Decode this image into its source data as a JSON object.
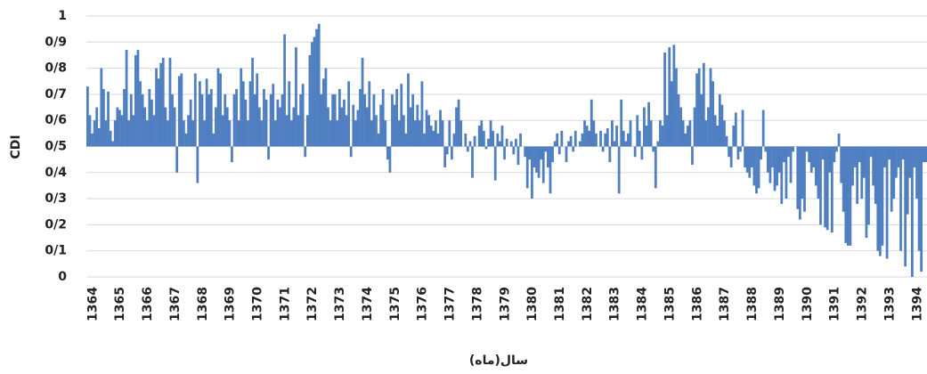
{
  "chart_data": {
    "type": "bar",
    "ylabel": "CDI",
    "xlabel": "سال(ماه)",
    "color": "#4f7fc0",
    "base": 0.5,
    "ylim": [
      0,
      1
    ],
    "yticks": [
      0,
      {
        "value": 0.1,
        "label": "0/1"
      },
      {
        "value": 0.2,
        "label": "0/2"
      },
      {
        "value": 0.3,
        "label": "0/3"
      },
      {
        "value": 0.4,
        "label": "0/4"
      },
      {
        "value": 0.5,
        "label": "0/5"
      },
      {
        "value": 0.6,
        "label": "0/6"
      },
      {
        "value": 0.7,
        "label": "0/7"
      },
      {
        "value": 0.8,
        "label": "0/8"
      },
      {
        "value": 0.9,
        "label": "0/9"
      },
      1
    ],
    "grid": true,
    "categories": [
      "1364",
      null,
      null,
      null,
      null,
      null,
      null,
      null,
      null,
      null,
      null,
      null,
      "1365",
      null,
      null,
      null,
      null,
      null,
      null,
      null,
      null,
      null,
      null,
      null,
      "1366",
      null,
      null,
      null,
      null,
      null,
      null,
      null,
      null,
      null,
      null,
      null,
      "1367",
      null,
      null,
      null,
      null,
      null,
      null,
      null,
      null,
      null,
      null,
      null,
      "1368",
      null,
      null,
      null,
      null,
      null,
      null,
      null,
      null,
      null,
      null,
      null,
      "1369",
      null,
      null,
      null,
      null,
      null,
      null,
      null,
      null,
      null,
      null,
      null,
      "1370",
      null,
      null,
      null,
      null,
      null,
      null,
      null,
      null,
      null,
      null,
      null,
      "1371",
      null,
      null,
      null,
      null,
      null,
      null,
      null,
      null,
      null,
      null,
      null,
      "1372",
      null,
      null,
      null,
      null,
      null,
      null,
      null,
      null,
      null,
      null,
      null,
      "1373",
      null,
      null,
      null,
      null,
      null,
      null,
      null,
      null,
      null,
      null,
      null,
      "1374",
      null,
      null,
      null,
      null,
      null,
      null,
      null,
      null,
      null,
      null,
      null,
      "1375",
      null,
      null,
      null,
      null,
      null,
      null,
      null,
      null,
      null,
      null,
      null,
      "1376",
      null,
      null,
      null,
      null,
      null,
      null,
      null,
      null,
      null,
      null,
      null,
      "1377",
      null,
      null,
      null,
      null,
      null,
      null,
      null,
      null,
      null,
      null,
      null,
      "1378",
      null,
      null,
      null,
      null,
      null,
      null,
      null,
      null,
      null,
      null,
      null,
      "1379",
      null,
      null,
      null,
      null,
      null,
      null,
      null,
      null,
      null,
      null,
      null,
      "1380",
      null,
      null,
      null,
      null,
      null,
      null,
      null,
      null,
      null,
      null,
      null,
      "1381",
      null,
      null,
      null,
      null,
      null,
      null,
      null,
      null,
      null,
      null,
      null,
      "1382",
      null,
      null,
      null,
      null,
      null,
      null,
      null,
      null,
      null,
      null,
      null,
      "1383",
      null,
      null,
      null,
      null,
      null,
      null,
      null,
      null,
      null,
      null,
      null,
      "1384",
      null,
      null,
      null,
      null,
      null,
      null,
      null,
      null,
      null,
      null,
      null,
      "1385",
      null,
      null,
      null,
      null,
      null,
      null,
      null,
      null,
      null,
      null,
      null,
      "1386",
      null,
      null,
      null,
      null,
      null,
      null,
      null,
      null,
      null,
      null,
      null,
      "1387",
      null,
      null,
      null,
      null,
      null,
      null,
      null,
      null,
      null,
      null,
      null,
      "1388",
      null,
      null,
      null,
      null,
      null,
      null,
      null,
      null,
      null,
      null,
      null,
      "1389",
      null,
      null,
      null,
      null,
      null,
      null,
      null,
      null,
      null,
      null,
      null,
      "1390",
      null,
      null,
      null,
      null,
      null,
      null,
      null,
      null,
      null,
      null,
      null,
      "1391",
      null,
      null,
      null,
      null,
      null,
      null,
      null,
      null,
      null,
      null,
      null,
      "1392",
      null,
      null,
      null,
      null,
      null,
      null,
      null,
      null,
      null,
      null,
      null,
      "1393",
      null,
      null,
      null,
      null,
      null,
      null,
      null,
      null,
      null,
      null,
      null,
      "1394",
      null,
      null,
      null,
      null,
      null,
      null
    ],
    "values": [
      0.73,
      0.62,
      0.55,
      0.6,
      0.65,
      0.57,
      0.8,
      0.72,
      0.6,
      0.71,
      0.56,
      0.52,
      0.6,
      0.65,
      0.64,
      0.62,
      0.72,
      0.87,
      0.6,
      0.7,
      0.62,
      0.85,
      0.87,
      0.75,
      0.7,
      0.65,
      0.6,
      0.72,
      0.68,
      0.62,
      0.8,
      0.76,
      0.82,
      0.84,
      0.65,
      0.6,
      0.84,
      0.7,
      0.65,
      0.4,
      0.77,
      0.78,
      0.6,
      0.55,
      0.62,
      0.68,
      0.6,
      0.78,
      0.36,
      0.75,
      0.7,
      0.6,
      0.76,
      0.7,
      0.72,
      0.55,
      0.65,
      0.8,
      0.78,
      0.62,
      0.7,
      0.65,
      0.6,
      0.44,
      0.7,
      0.72,
      0.6,
      0.8,
      0.75,
      0.68,
      0.6,
      0.75,
      0.84,
      0.7,
      0.78,
      0.65,
      0.6,
      0.72,
      0.68,
      0.45,
      0.7,
      0.74,
      0.6,
      0.68,
      0.65,
      0.7,
      0.93,
      0.62,
      0.75,
      0.6,
      0.65,
      0.88,
      0.62,
      0.7,
      0.74,
      0.46,
      0.62,
      0.85,
      0.9,
      0.92,
      0.95,
      0.97,
      0.7,
      0.76,
      0.8,
      0.65,
      0.6,
      0.7,
      0.7,
      0.6,
      0.72,
      0.65,
      0.68,
      0.62,
      0.75,
      0.46,
      0.66,
      0.6,
      0.64,
      0.72,
      0.84,
      0.7,
      0.65,
      0.75,
      0.6,
      0.7,
      0.62,
      0.55,
      0.66,
      0.72,
      0.6,
      0.45,
      0.4,
      0.7,
      0.66,
      0.72,
      0.6,
      0.74,
      0.62,
      0.55,
      0.78,
      0.65,
      0.7,
      0.6,
      0.66,
      0.6,
      0.75,
      0.55,
      0.64,
      0.62,
      0.58,
      0.56,
      0.6,
      0.55,
      0.64,
      0.6,
      0.42,
      0.47,
      0.6,
      0.45,
      0.55,
      0.65,
      0.68,
      0.6,
      0.5,
      0.55,
      0.48,
      0.52,
      0.38,
      0.54,
      0.5,
      0.58,
      0.6,
      0.56,
      0.49,
      0.53,
      0.6,
      0.56,
      0.37,
      0.55,
      0.52,
      0.58,
      0.45,
      0.53,
      0.5,
      0.52,
      0.47,
      0.53,
      0.43,
      0.55,
      0.5,
      0.46,
      0.34,
      0.45,
      0.3,
      0.42,
      0.4,
      0.38,
      0.45,
      0.36,
      0.48,
      0.42,
      0.32,
      0.44,
      0.52,
      0.55,
      0.47,
      0.56,
      0.5,
      0.44,
      0.52,
      0.54,
      0.48,
      0.56,
      0.5,
      0.52,
      0.55,
      0.6,
      0.58,
      0.56,
      0.68,
      0.6,
      0.55,
      0.5,
      0.56,
      0.48,
      0.55,
      0.57,
      0.44,
      0.6,
      0.52,
      0.58,
      0.32,
      0.68,
      0.56,
      0.52,
      0.55,
      0.6,
      0.5,
      0.46,
      0.62,
      0.56,
      0.45,
      0.65,
      0.58,
      0.67,
      0.6,
      0.48,
      0.34,
      0.52,
      0.6,
      0.58,
      0.86,
      0.62,
      0.88,
      0.75,
      0.89,
      0.8,
      0.7,
      0.65,
      0.6,
      0.55,
      0.58,
      0.6,
      0.43,
      0.65,
      0.78,
      0.8,
      0.7,
      0.82,
      0.6,
      0.65,
      0.8,
      0.75,
      0.62,
      0.58,
      0.7,
      0.66,
      0.6,
      0.54,
      0.46,
      0.42,
      0.58,
      0.63,
      0.45,
      0.48,
      0.64,
      0.42,
      0.4,
      0.38,
      0.42,
      0.35,
      0.32,
      0.34,
      0.45,
      0.64,
      0.48,
      0.4,
      0.36,
      0.42,
      0.33,
      0.35,
      0.4,
      0.28,
      0.44,
      0.3,
      0.46,
      0.36,
      0.48,
      0.5,
      0.26,
      0.22,
      0.3,
      0.25,
      0.48,
      0.44,
      0.4,
      0.42,
      0.35,
      0.3,
      0.2,
      0.45,
      0.19,
      0.18,
      0.4,
      0.17,
      0.44,
      0.48,
      0.55,
      0.36,
      0.25,
      0.13,
      0.12,
      0.12,
      0.35,
      0.42,
      0.28,
      0.44,
      0.3,
      0.38,
      0.15,
      0.2,
      0.46,
      0.35,
      0.28,
      0.1,
      0.08,
      0.12,
      0.42,
      0.07,
      0.45,
      0.25,
      0.3,
      0.38,
      0.42,
      0.1,
      0.45,
      0.04,
      0.24,
      0.38,
      0.0,
      0.42,
      0.3,
      0.1,
      0.02,
      0.44,
      0.44
    ]
  }
}
